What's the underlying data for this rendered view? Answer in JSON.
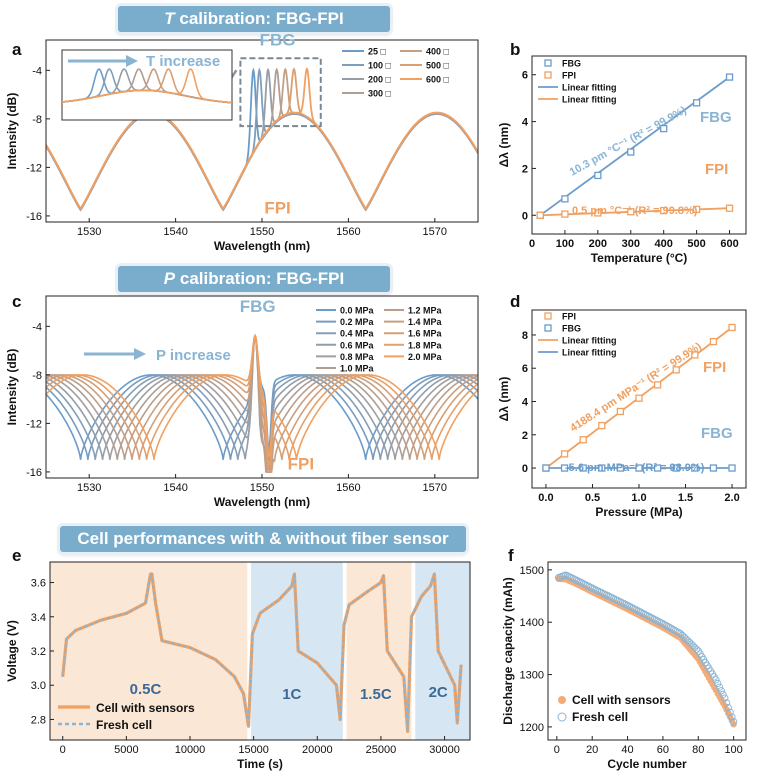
{
  "banners": {
    "top_pre": "",
    "top_var": "T",
    "top_post": " calibration: FBG-FPI",
    "mid_var": "P",
    "mid_post": " calibration: FBG-FPI",
    "bottom": "Cell performances with & without fiber sensor"
  },
  "panel_labels": {
    "a": "a",
    "b": "b",
    "c": "c",
    "d": "d",
    "e": "e",
    "f": "f"
  },
  "colors": {
    "blue": "#6a9ccb",
    "orange": "#f0a060",
    "banner": "#7aaccc",
    "shade_orange": "#fbe7d6",
    "shade_blue": "#d6e6f3"
  },
  "chart_data": [
    {
      "id": "a",
      "type": "line",
      "xlabel": "Wavelength (nm)",
      "ylabel": "Intensity (dB)",
      "xlim": [
        1525,
        1575
      ],
      "ylim": [
        -16.5,
        -1.5
      ],
      "xticks": [
        1530,
        1540,
        1550,
        1560,
        1570
      ],
      "yticks": [
        -4,
        -8,
        -12,
        -16
      ],
      "annotations": {
        "fbg": "FBG",
        "fpi": "FPI",
        "inset": "T increase"
      },
      "legend": [
        "25 □",
        "100 □",
        "200 □",
        "300 □",
        "400 □",
        "500 □",
        "600 □"
      ],
      "fbg_peaks_nm": [
        1549.0,
        1549.7,
        1550.7,
        1551.7,
        1552.7,
        1553.7,
        1555.2
      ],
      "fbg_peak_db": -4.0,
      "fpi_valleys_nm": [
        1529.0,
        1545.5,
        1562.0
      ],
      "fpi_valley_db": -15.5,
      "fpi_max_db": -7.6
    },
    {
      "id": "b",
      "type": "line",
      "xlabel": "Temperature (°C)",
      "ylabel": "Δλ (nm)",
      "xlim": [
        0,
        650
      ],
      "ylim": [
        -0.8,
        6.8
      ],
      "xticks": [
        0,
        100,
        200,
        300,
        400,
        500,
        600
      ],
      "yticks": [
        0,
        2,
        4,
        6
      ],
      "legend": [
        "FBG",
        "FPI",
        "Linear fitting",
        "Linear fitting"
      ],
      "series": [
        {
          "name": "FBG",
          "x": [
            25,
            100,
            200,
            300,
            400,
            500,
            600
          ],
          "y": [
            0,
            0.7,
            1.7,
            2.7,
            3.7,
            4.8,
            5.9
          ]
        },
        {
          "name": "FPI",
          "x": [
            25,
            100,
            200,
            300,
            400,
            500,
            600
          ],
          "y": [
            0,
            0.05,
            0.1,
            0.15,
            0.2,
            0.25,
            0.3
          ]
        }
      ],
      "labels": {
        "fbg": "FBG",
        "fpi": "FPI",
        "fbg_fit": "10.3 pm °C⁻¹ (R² = 99.9%)",
        "fpi_fit": "0.5 pm °C⁻¹ (R² = 99.8%)"
      }
    },
    {
      "id": "c",
      "type": "line",
      "xlabel": "Wavelength (nm)",
      "ylabel": "Intensity (dB)",
      "xlim": [
        1525,
        1575
      ],
      "ylim": [
        -16.5,
        -1.5
      ],
      "xticks": [
        1530,
        1540,
        1550,
        1560,
        1570
      ],
      "yticks": [
        -4,
        -8,
        -12,
        -16
      ],
      "annotations": {
        "fbg": "FBG",
        "fpi": "FPI",
        "arrow": "P increase"
      },
      "legend": [
        "0.0 MPa",
        "0.2 MPa",
        "0.4 MPa",
        "0.6 MPa",
        "0.8 MPa",
        "1.0 MPa",
        "1.2 MPa",
        "1.4 MPa",
        "1.6 MPa",
        "1.8 MPa",
        "2.0 MPa"
      ],
      "fpi_shift_nm": [
        0,
        0.85,
        1.7,
        2.55,
        3.4,
        4.25,
        5.1,
        5.95,
        6.8,
        7.65,
        8.5
      ]
    },
    {
      "id": "d",
      "type": "line",
      "xlabel": "Pressure (MPa)",
      "ylabel": "Δλ (nm)",
      "xlim": [
        -0.15,
        2.15
      ],
      "ylim": [
        -1.2,
        9.5
      ],
      "xticks": [
        0.0,
        0.5,
        1.0,
        1.5,
        2.0
      ],
      "yticks": [
        0,
        2,
        4,
        6,
        8
      ],
      "legend": [
        "FPI",
        "FBG",
        "Linear fitting",
        "Linear fitting"
      ],
      "series": [
        {
          "name": "FPI",
          "x": [
            0,
            0.2,
            0.4,
            0.6,
            0.8,
            1.0,
            1.2,
            1.4,
            1.6,
            1.8,
            2.0
          ],
          "y": [
            0,
            0.85,
            1.7,
            2.55,
            3.4,
            4.2,
            5.0,
            5.9,
            6.8,
            7.6,
            8.45
          ]
        },
        {
          "name": "FBG",
          "x": [
            0,
            0.2,
            0.4,
            0.6,
            0.8,
            1.0,
            1.2,
            1.4,
            1.6,
            1.8,
            2.0
          ],
          "y": [
            0,
            0,
            0,
            0,
            0,
            0,
            0,
            0,
            0,
            0,
            0
          ]
        }
      ],
      "labels": {
        "fpi": "FPI",
        "fbg": "FBG",
        "fpi_fit": "4188.4 pm MPa⁻¹ (R² = 99.9%)",
        "fbg_fit": "-5.6 pm MPa⁻¹ (R² = 98.9%)"
      }
    },
    {
      "id": "e",
      "type": "line",
      "xlabel": "Time (s)",
      "ylabel": "Voltage (V)",
      "xlim": [
        -1000,
        32000
      ],
      "ylim": [
        2.68,
        3.72
      ],
      "xticks": [
        0,
        5000,
        10000,
        15000,
        20000,
        25000,
        30000
      ],
      "yticks": [
        2.8,
        3.0,
        3.2,
        3.4,
        3.6
      ],
      "regions": [
        {
          "label": "0.5C",
          "start": -1000,
          "end": 14500
        },
        {
          "label": "1C",
          "start": 14800,
          "end": 22000
        },
        {
          "label": "1.5C",
          "start": 22300,
          "end": 27400
        },
        {
          "label": "2C",
          "start": 27700,
          "end": 32000
        }
      ],
      "legend": [
        "Cell with sensors",
        "Fresh cell"
      ],
      "series": [
        {
          "name": "Cell with sensors",
          "x": [
            0,
            300,
            1000,
            3000,
            5000,
            6500,
            6900,
            7000,
            7300,
            7800,
            10000,
            12000,
            13500,
            14200,
            14600,
            14900,
            15500,
            17000,
            18000,
            18200,
            18500,
            20000,
            21500,
            21800,
            22100,
            22500,
            24000,
            25000,
            25200,
            25500,
            26800,
            27100,
            27400,
            28200,
            28900,
            29200,
            29500,
            30800,
            31000,
            31300
          ],
          "y": [
            3.05,
            3.27,
            3.32,
            3.38,
            3.42,
            3.48,
            3.65,
            3.65,
            3.48,
            3.26,
            3.22,
            3.15,
            3.05,
            2.95,
            2.76,
            3.3,
            3.42,
            3.5,
            3.58,
            3.65,
            3.2,
            3.13,
            3.0,
            2.8,
            3.35,
            3.47,
            3.55,
            3.6,
            3.64,
            3.2,
            3.05,
            2.73,
            3.4,
            3.52,
            3.58,
            3.65,
            3.2,
            3.0,
            2.78,
            3.12
          ]
        },
        {
          "name": "Fresh cell",
          "same_as": "Cell with sensors"
        }
      ]
    },
    {
      "id": "f",
      "type": "scatter",
      "xlabel": "Cycle number",
      "ylabel": "Discharge capacity (mAh)",
      "xlim": [
        -5,
        107
      ],
      "ylim": [
        1175,
        1515
      ],
      "xticks": [
        0,
        20,
        40,
        60,
        80,
        100
      ],
      "yticks": [
        1200,
        1300,
        1400,
        1500
      ],
      "legend": [
        "Cell with sensors",
        "Fresh cell"
      ],
      "series": [
        {
          "name": "Cell with sensors",
          "anchors_x": [
            1,
            5,
            10,
            20,
            40,
            60,
            70,
            80,
            90,
            95,
            100
          ],
          "anchors_y": [
            1483,
            1482,
            1475,
            1458,
            1425,
            1390,
            1370,
            1330,
            1270,
            1240,
            1205
          ]
        },
        {
          "name": "Fresh cell",
          "anchors_x": [
            1,
            5,
            10,
            20,
            40,
            60,
            70,
            80,
            90,
            95,
            100
          ],
          "anchors_y": [
            1485,
            1490,
            1482,
            1465,
            1432,
            1397,
            1378,
            1345,
            1290,
            1255,
            1210
          ]
        }
      ]
    }
  ]
}
